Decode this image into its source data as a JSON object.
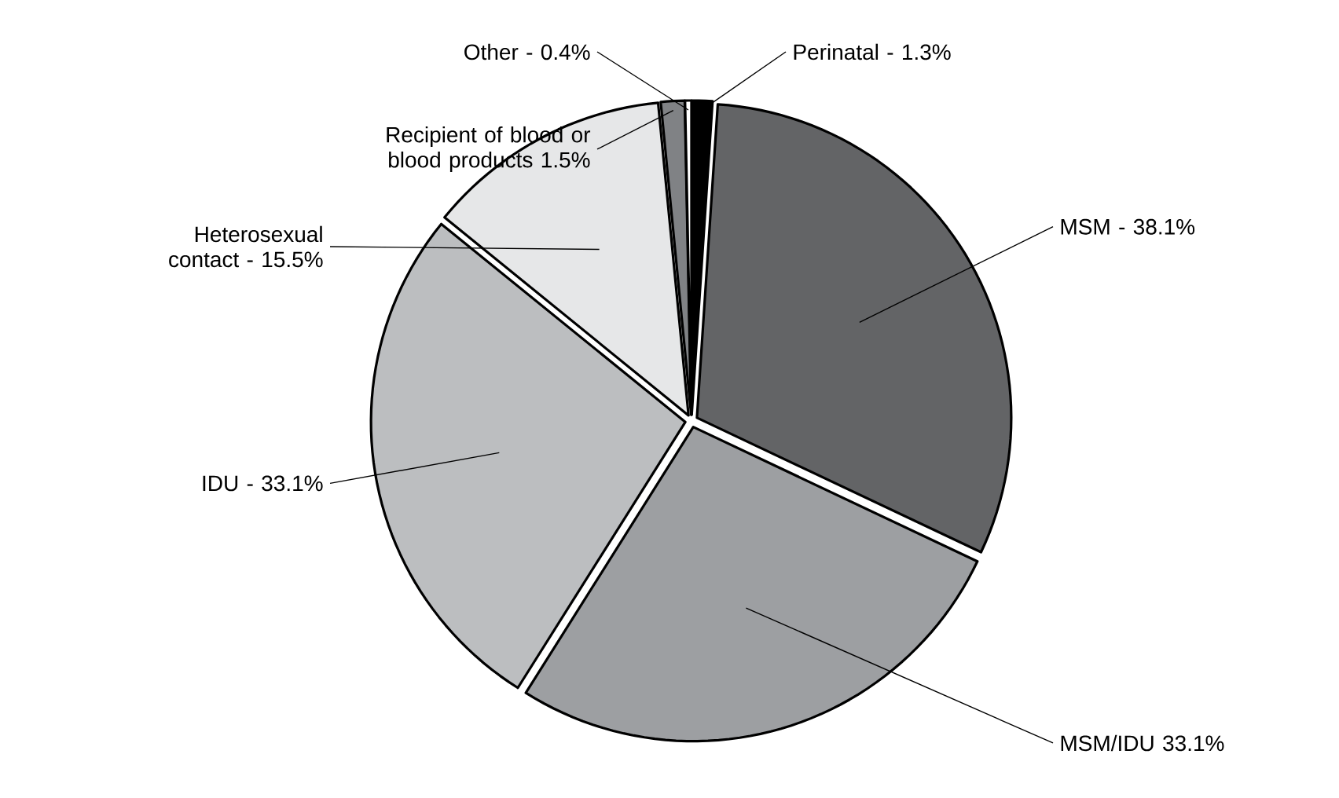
{
  "chart_data": {
    "type": "pie",
    "categories": [
      "Perinatal - 1.3%",
      "MSM - 38.1%",
      "MSM/IDU 33.1%",
      "IDU - 33.1%",
      "Heterosexual contact - 15.5%",
      "Recipient of blood or blood products 1.5%",
      "Other - 0.4%"
    ],
    "values": [
      1.3,
      38.1,
      33.1,
      33.1,
      15.5,
      1.5,
      0.4
    ],
    "colors": [
      "#000000",
      "#636466",
      "#9d9fa2",
      "#bcbec0",
      "#e6e7e8",
      "#808285",
      "#ffffff"
    ]
  }
}
